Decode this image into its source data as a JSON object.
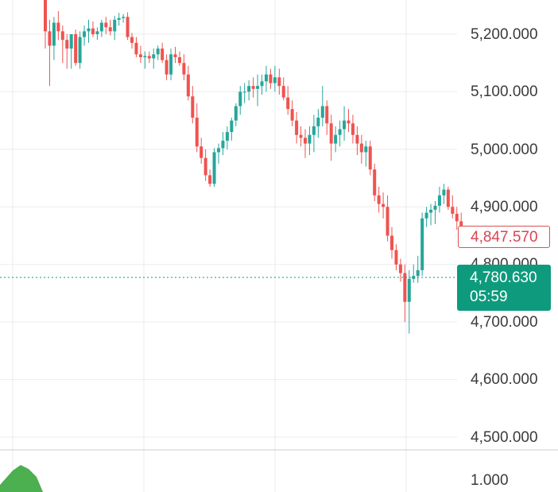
{
  "chart_data": {
    "type": "candlestick",
    "y_ticks": [
      "5,200.000",
      "5,100.000",
      "5,000.000",
      "4,900.000",
      "4,800.000",
      "4,700.000",
      "4,600.000",
      "4,500.000"
    ],
    "ylim": [
      4470,
      5285
    ],
    "last_price_label": "4,847.570",
    "current_price_label": "4,780.630",
    "countdown": "05:59",
    "current_price": 4780.63,
    "indicator_tick": "1.000",
    "colors": {
      "up": "#26a69a",
      "down": "#ef5350",
      "current": "#0e9b7d",
      "grid": "#ebebeb",
      "indicator": "#4caf50"
    },
    "candles": [
      [
        5290,
        5298,
        5175,
        5205
      ],
      [
        5205,
        5225,
        5110,
        5180
      ],
      [
        5180,
        5230,
        5155,
        5220
      ],
      [
        5220,
        5240,
        5190,
        5205
      ],
      [
        5205,
        5215,
        5150,
        5190
      ],
      [
        5190,
        5200,
        5140,
        5175
      ],
      [
        5175,
        5200,
        5140,
        5200
      ],
      [
        5200,
        5208,
        5145,
        5150
      ],
      [
        5150,
        5205,
        5140,
        5195
      ],
      [
        5195,
        5215,
        5180,
        5205
      ],
      [
        5205,
        5225,
        5185,
        5210
      ],
      [
        5210,
        5222,
        5195,
        5200
      ],
      [
        5200,
        5212,
        5190,
        5205
      ],
      [
        5205,
        5225,
        5195,
        5220
      ],
      [
        5220,
        5230,
        5200,
        5212
      ],
      [
        5212,
        5225,
        5198,
        5205
      ],
      [
        5205,
        5232,
        5190,
        5225
      ],
      [
        5225,
        5237,
        5215,
        5228
      ],
      [
        5228,
        5235,
        5220,
        5230
      ],
      [
        5230,
        5238,
        5190,
        5195
      ],
      [
        5195,
        5202,
        5175,
        5185
      ],
      [
        5185,
        5195,
        5160,
        5165
      ],
      [
        5165,
        5180,
        5150,
        5160
      ],
      [
        5160,
        5170,
        5140,
        5162
      ],
      [
        5162,
        5170,
        5150,
        5158
      ],
      [
        5158,
        5175,
        5140,
        5165
      ],
      [
        5165,
        5180,
        5155,
        5175
      ],
      [
        5175,
        5185,
        5150,
        5155
      ],
      [
        5155,
        5165,
        5120,
        5130
      ],
      [
        5130,
        5175,
        5120,
        5165
      ],
      [
        5165,
        5178,
        5150,
        5160
      ],
      [
        5160,
        5170,
        5145,
        5150
      ],
      [
        5150,
        5165,
        5120,
        5130
      ],
      [
        5130,
        5145,
        5085,
        5092
      ],
      [
        5092,
        5110,
        5045,
        5055
      ],
      [
        5055,
        5080,
        4995,
        5005
      ],
      [
        5005,
        5020,
        4975,
        4985
      ],
      [
        4985,
        5000,
        4945,
        4955
      ],
      [
        4955,
        4965,
        4935,
        4940
      ],
      [
        4940,
        5002,
        4935,
        4995
      ],
      [
        4995,
        5010,
        4975,
        5002
      ],
      [
        5002,
        5030,
        4990,
        5015
      ],
      [
        5015,
        5040,
        5000,
        5030
      ],
      [
        5030,
        5055,
        5015,
        5050
      ],
      [
        5050,
        5080,
        5040,
        5075
      ],
      [
        5075,
        5110,
        5060,
        5100
      ],
      [
        5100,
        5115,
        5080,
        5100
      ],
      [
        5100,
        5120,
        5085,
        5110
      ],
      [
        5110,
        5125,
        5090,
        5105
      ],
      [
        5105,
        5130,
        5075,
        5110
      ],
      [
        5110,
        5130,
        5095,
        5118
      ],
      [
        5118,
        5145,
        5100,
        5130
      ],
      [
        5130,
        5140,
        5105,
        5115
      ],
      [
        5115,
        5145,
        5100,
        5125
      ],
      [
        5125,
        5140,
        5095,
        5110
      ],
      [
        5110,
        5125,
        5085,
        5090
      ],
      [
        5090,
        5110,
        5060,
        5070
      ],
      [
        5070,
        5085,
        5040,
        5050
      ],
      [
        5050,
        5065,
        5010,
        5025
      ],
      [
        5025,
        5040,
        5005,
        5020
      ],
      [
        5020,
        5035,
        4985,
        5010
      ],
      [
        5010,
        5040,
        4990,
        5025
      ],
      [
        5025,
        5060,
        4995,
        5040
      ],
      [
        5040,
        5070,
        5020,
        5055
      ],
      [
        5055,
        5110,
        5040,
        5075
      ],
      [
        5075,
        5085,
        5025,
        5045
      ],
      [
        5045,
        5060,
        4980,
        5010
      ],
      [
        5010,
        5040,
        4995,
        5025
      ],
      [
        5025,
        5050,
        5005,
        5035
      ],
      [
        5035,
        5075,
        5015,
        5050
      ],
      [
        5050,
        5070,
        5030,
        5045
      ],
      [
        5045,
        5060,
        5010,
        5025
      ],
      [
        5025,
        5040,
        4990,
        5010
      ],
      [
        5010,
        5025,
        4975,
        4995
      ],
      [
        4995,
        5015,
        4970,
        5005
      ],
      [
        5005,
        5015,
        4955,
        4965
      ],
      [
        4965,
        4975,
        4910,
        4920
      ],
      [
        4920,
        4935,
        4890,
        4905
      ],
      [
        4905,
        4925,
        4880,
        4900
      ],
      [
        4900,
        4920,
        4840,
        4850
      ],
      [
        4850,
        4865,
        4810,
        4825
      ],
      [
        4825,
        4835,
        4790,
        4800
      ],
      [
        4800,
        4810,
        4770,
        4785
      ],
      [
        4785,
        4800,
        4700,
        4735
      ],
      [
        4735,
        4790,
        4680,
        4775
      ],
      [
        4775,
        4800,
        4768,
        4780
      ],
      [
        4780,
        4815,
        4768,
        4790
      ],
      [
        4790,
        4890,
        4780,
        4880
      ],
      [
        4880,
        4900,
        4865,
        4890
      ],
      [
        4890,
        4905,
        4868,
        4895
      ],
      [
        4895,
        4910,
        4870,
        4902
      ],
      [
        4902,
        4935,
        4890,
        4920
      ],
      [
        4920,
        4940,
        4905,
        4930
      ],
      [
        4930,
        4935,
        4895,
        4900
      ],
      [
        4900,
        4920,
        4880,
        4888
      ],
      [
        4888,
        4900,
        4860,
        4875
      ],
      [
        4875,
        4890,
        4835,
        4848
      ]
    ]
  }
}
